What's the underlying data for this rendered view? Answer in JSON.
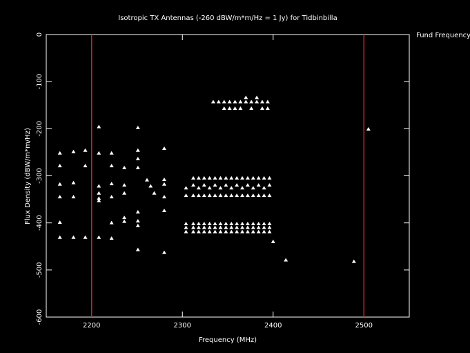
{
  "chart_data": {
    "type": "scatter",
    "title": "Isotropic TX Antennas (-260 dBW/m*m/Hz = 1 Jy) for Tidbinbilla",
    "x_label": "Frequency (MHz)",
    "y_label": "Flux Density (dBW/m*m/Hz)",
    "xlim": [
      2150,
      2550
    ],
    "ylim": [
      -600,
      0
    ],
    "xticks": [
      2200,
      2300,
      2400,
      2500
    ],
    "yticks": [
      0,
      -100,
      -200,
      -300,
      -400,
      -500,
      -600
    ],
    "vlines": {
      "name": "Fund Frequency",
      "color": "#cc2222",
      "x": [
        2200,
        2500
      ]
    },
    "series": [
      {
        "color": "#ffffff",
        "x": [
          2165,
          2165,
          2165,
          2165,
          2165,
          2165,
          2180,
          2180,
          2180,
          2180,
          2193,
          2193,
          2193,
          2208,
          2208,
          2208,
          2208,
          2208,
          2208,
          2208,
          2222,
          2222,
          2222,
          2222,
          2222,
          2222,
          2236,
          2236,
          2236,
          2236,
          2236,
          2251,
          2251,
          2251,
          2251,
          2251,
          2251,
          2251,
          2251,
          2261,
          2265,
          2269,
          2280,
          2280,
          2280,
          2280,
          2280,
          2280,
          2334,
          2340,
          2346,
          2352,
          2358,
          2364,
          2370,
          2376,
          2382,
          2388,
          2394,
          2346,
          2352,
          2358,
          2364,
          2376,
          2388,
          2394,
          2370,
          2382,
          2312,
          2318,
          2324,
          2330,
          2336,
          2342,
          2348,
          2354,
          2360,
          2366,
          2372,
          2378,
          2384,
          2390,
          2396,
          2312,
          2324,
          2336,
          2348,
          2360,
          2372,
          2384,
          2396,
          2304,
          2318,
          2330,
          2342,
          2354,
          2366,
          2378,
          2390,
          2304,
          2312,
          2318,
          2324,
          2330,
          2336,
          2342,
          2348,
          2354,
          2360,
          2366,
          2372,
          2378,
          2384,
          2390,
          2396,
          2304,
          2312,
          2318,
          2324,
          2330,
          2336,
          2342,
          2348,
          2354,
          2360,
          2366,
          2372,
          2378,
          2384,
          2390,
          2396,
          2304,
          2312,
          2318,
          2324,
          2330,
          2336,
          2342,
          2348,
          2354,
          2360,
          2366,
          2372,
          2378,
          2384,
          2390,
          2396,
          2304,
          2312,
          2318,
          2324,
          2330,
          2336,
          2342,
          2348,
          2354,
          2360,
          2366,
          2372,
          2378,
          2384,
          2390,
          2396,
          2400,
          2414,
          2489,
          2505
        ],
        "values": [
          -252,
          -279,
          -318,
          -345,
          -399,
          -431,
          -249,
          -315,
          -345,
          -431,
          -246,
          -279,
          -431,
          -196,
          -252,
          -322,
          -337,
          -348,
          -353,
          -431,
          -252,
          -279,
          -317,
          -345,
          -400,
          -433,
          -283,
          -320,
          -337,
          -389,
          -397,
          -198,
          -246,
          -264,
          -283,
          -377,
          -396,
          -406,
          -457,
          -309,
          -322,
          -337,
          -242,
          -308,
          -318,
          -345,
          -374,
          -463,
          -143,
          -143,
          -143,
          -143,
          -143,
          -143,
          -143,
          -143,
          -143,
          -143,
          -143,
          -157,
          -157,
          -157,
          -157,
          -157,
          -157,
          -157,
          -134,
          -134,
          -305,
          -305,
          -305,
          -305,
          -305,
          -305,
          -305,
          -305,
          -305,
          -305,
          -305,
          -305,
          -305,
          -305,
          -305,
          -320,
          -320,
          -320,
          -320,
          -320,
          -320,
          -320,
          -320,
          -326,
          -326,
          -326,
          -326,
          -326,
          -326,
          -326,
          -326,
          -342,
          -342,
          -342,
          -342,
          -342,
          -342,
          -342,
          -342,
          -342,
          -342,
          -342,
          -342,
          -342,
          -342,
          -342,
          -342,
          -402,
          -402,
          -402,
          -402,
          -402,
          -402,
          -402,
          -402,
          -402,
          -402,
          -402,
          -402,
          -402,
          -402,
          -402,
          -402,
          -410,
          -410,
          -410,
          -410,
          -410,
          -410,
          -410,
          -410,
          -410,
          -410,
          -410,
          -410,
          -410,
          -410,
          -410,
          -410,
          -419,
          -419,
          -419,
          -419,
          -419,
          -419,
          -419,
          -419,
          -419,
          -419,
          -419,
          -419,
          -419,
          -419,
          -419,
          -419,
          -440,
          -479,
          -482,
          -201
        ]
      }
    ]
  }
}
